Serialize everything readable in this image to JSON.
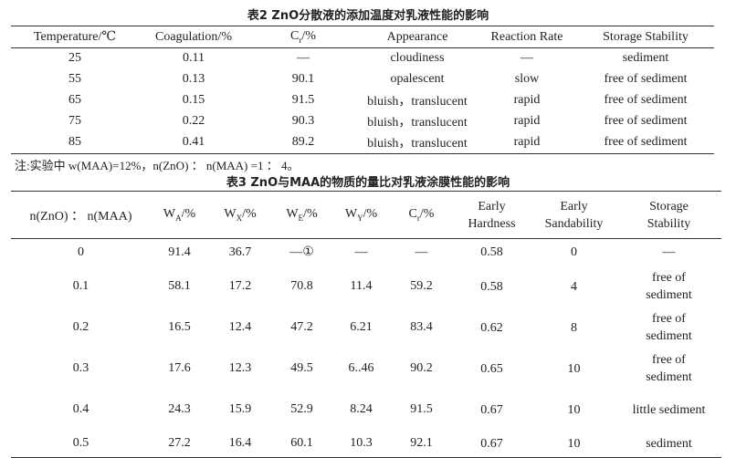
{
  "table2": {
    "title": "表2 ZnO分散液的添加温度对乳液性能的影响",
    "headers": [
      "Temperature/℃",
      "Coagulation/%",
      {
        "base": "C",
        "sub": "r",
        "unit": "/%"
      },
      "Appearance",
      "Reaction Rate",
      "Storage Stability"
    ],
    "rows": [
      [
        "25",
        "0.11",
        "—",
        "cloudiness",
        "—",
        "sediment"
      ],
      [
        "55",
        "0.13",
        "90.1",
        "opalescent",
        "slow",
        "free of sediment"
      ],
      [
        "65",
        "0.15",
        "91.5",
        "bluish，translucent",
        "rapid",
        "free of sediment"
      ],
      [
        "75",
        "0.22",
        "90.3",
        "bluish，translucent",
        "rapid",
        "free of sediment"
      ],
      [
        "85",
        "0.41",
        "89.2",
        "bluish，translucent",
        "rapid",
        "free of sediment"
      ]
    ],
    "note": "注:实验中 w(MAA)=12%，n(ZnO) ： n(MAA) =1 ： 4。"
  },
  "table3": {
    "title": "表3 ZnO与MAA的物质的量比对乳液涂膜性能的影响",
    "headers": [
      "n(ZnO) ： n(MAA)",
      {
        "base": "W",
        "sub": "A",
        "unit": "/%"
      },
      {
        "base": "W",
        "sub": "X",
        "unit": "/%"
      },
      {
        "base": "W",
        "sub": "E",
        "unit": "/%"
      },
      {
        "base": "W",
        "sub": "Y",
        "unit": "/%"
      },
      {
        "base": "C",
        "sub": "r",
        "unit": "/%"
      },
      "Early Hardness",
      "Early Sandability",
      "Storage Stability"
    ],
    "rows": [
      [
        "0",
        "91.4",
        "36.7",
        "—①",
        "—",
        "—",
        "0.58",
        "0",
        "—"
      ],
      [
        "0.1",
        "58.1",
        "17.2",
        "70.8",
        "11.4",
        "59.2",
        "0.58",
        "4",
        "free of sediment"
      ],
      [
        "0.2",
        "16.5",
        "12.4",
        "47.2",
        "6.21",
        "83.4",
        "0.62",
        "8",
        "free of sediment"
      ],
      [
        "0.3",
        "17.6",
        "12.3",
        "49.5",
        "6..46",
        "90.2",
        "0.65",
        "10",
        "free of sediment"
      ],
      [
        "0.4",
        "24.3",
        "15.9",
        "52.9",
        "8.24",
        "91.5",
        "0.67",
        "10",
        "little sediment"
      ],
      [
        "0.5",
        "27.2",
        "16.4",
        "60.1",
        "10.3",
        "92.1",
        "0.67",
        "10",
        "sediment"
      ]
    ]
  }
}
